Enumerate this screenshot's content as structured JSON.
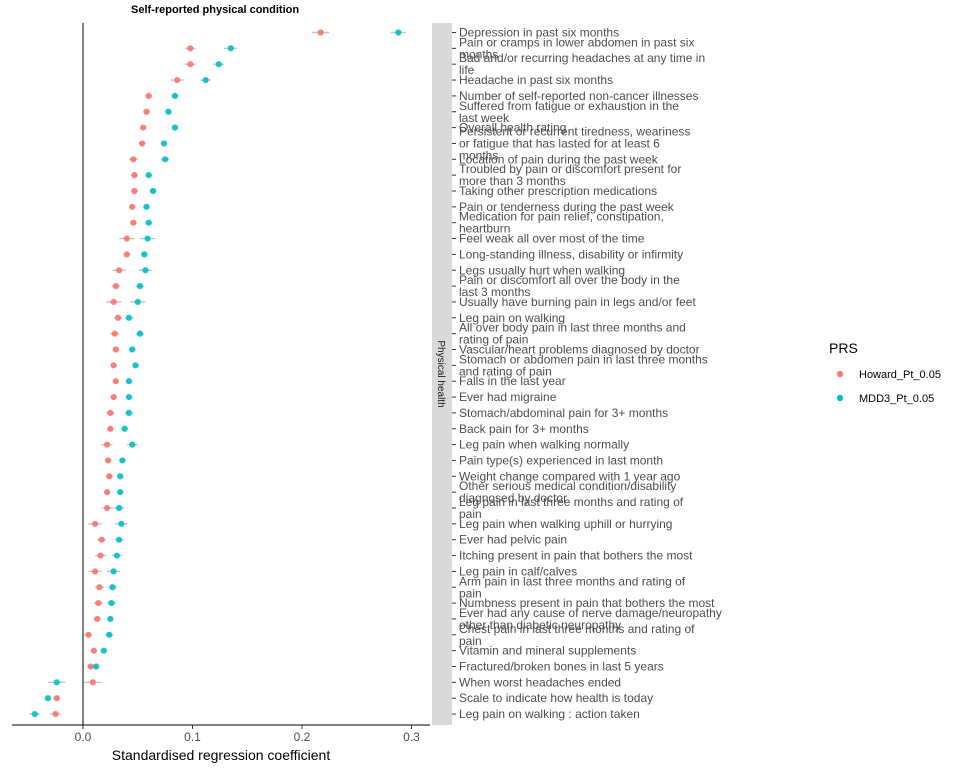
{
  "chart_data": {
    "type": "scatter",
    "title": "Self-reported physical condition",
    "xlabel": "Standardised regression coefficient",
    "ylabel": "",
    "xlim": [
      -0.065,
      0.315
    ],
    "xticks": [
      0.0,
      0.1,
      0.2,
      0.3
    ],
    "xtick_labels": [
      "0.0",
      "0.1",
      "0.2",
      "0.3"
    ],
    "facet_label": "Physical health",
    "legend": {
      "title": "PRS",
      "placement": "right"
    },
    "grid": false,
    "categories": [
      "Depression in past six months",
      "Pain or cramps in lower abdomen in past six months",
      "Bad and/or recurring headaches at any time in life",
      "Headache in past six months",
      "Number of self-reported non-cancer illnesses",
      "Suffered from fatigue or exhaustion in the last week",
      "Overall health rating",
      "Persistent or recurrent tiredness, weariness or fatigue that has lasted for at least 6 months",
      "Location of pain during the past week",
      "Troubled by pain or discomfort present for more than 3 months",
      "Taking other prescription medications",
      "Pain or tenderness during the past week",
      "Medication for pain relief, constipation, heartburn",
      "Feel weak all over most of the time",
      "Long-standing illness, disability or infirmity",
      "Legs usually hurt when walking",
      "Pain or discomfort all over the body in the last 3 months",
      "Usually have burning pain in legs and/or feet",
      "Leg pain on walking",
      "All over body pain in last three months and rating of pain",
      "Vascular/heart problems diagnosed by doctor",
      "Stomach or abdomen pain in last three months and rating of pain",
      "Falls in the last year",
      "Ever had migraine",
      "Stomach/abdominal pain for 3+ months",
      "Back pain for 3+ months",
      "Leg pain when walking normally",
      "Pain type(s) experienced in last month",
      "Weight change compared with 1 year ago",
      "Other serious medical condition/disability diagnosed by doctor",
      "Leg pain in last three months and rating of pain",
      "Leg pain when walking uphill or hurrying",
      "Ever had pelvic pain",
      "Itching present in pain that bothers the most",
      "Leg pain in calf/calves",
      "Arm pain in last three months and rating of pain",
      "Numbness present in pain that bothers the most",
      "Ever had any cause of nerve damage/neuropathy other than diabetic neuropathy",
      "Chest pain in last three months and rating of pain",
      "Vitamin and mineral supplements",
      "Fractured/broken bones in last 5 years",
      "When worst headaches ended",
      "Scale to indicate how health is today",
      "Leg pain on walking : action taken"
    ],
    "series": [
      {
        "name": "Howard_Pt_0.05",
        "color": "#F8766D",
        "values": [
          0.217,
          0.098,
          0.098,
          0.086,
          0.06,
          0.058,
          0.055,
          0.054,
          0.046,
          0.047,
          0.047,
          0.045,
          0.046,
          0.04,
          0.04,
          0.033,
          0.03,
          0.028,
          0.032,
          0.029,
          0.03,
          0.028,
          0.03,
          0.028,
          0.025,
          0.025,
          0.022,
          0.023,
          0.024,
          0.022,
          0.022,
          0.011,
          0.017,
          0.016,
          0.011,
          0.015,
          0.014,
          0.013,
          0.005,
          0.01,
          0.007,
          0.009,
          -0.024,
          -0.025
        ],
        "err": [
          0.008,
          0.005,
          0.005,
          0.006,
          0.003,
          0.003,
          0.003,
          0.003,
          0.004,
          0.003,
          0.003,
          0.003,
          0.003,
          0.007,
          0.003,
          0.006,
          0.004,
          0.007,
          0.004,
          0.004,
          0.003,
          0.003,
          0.003,
          0.003,
          0.004,
          0.003,
          0.005,
          0.003,
          0.003,
          0.003,
          0.005,
          0.006,
          0.004,
          0.005,
          0.006,
          0.004,
          0.004,
          0.003,
          0.004,
          0.003,
          0.003,
          0.008,
          0.003,
          0.005
        ]
      },
      {
        "name": "MDD3_Pt_0.05",
        "color": "#00BFC4",
        "values": [
          0.288,
          0.135,
          0.124,
          0.112,
          0.084,
          0.078,
          0.084,
          0.074,
          0.075,
          0.06,
          0.064,
          0.058,
          0.06,
          0.059,
          0.056,
          0.057,
          0.052,
          0.05,
          0.042,
          0.052,
          0.045,
          0.048,
          0.042,
          0.042,
          0.042,
          0.038,
          0.045,
          0.036,
          0.034,
          0.034,
          0.033,
          0.035,
          0.033,
          0.031,
          0.028,
          0.027,
          0.026,
          0.025,
          0.024,
          0.019,
          0.012,
          -0.024,
          -0.032,
          -0.044
        ],
        "err": [
          0.007,
          0.006,
          0.005,
          0.005,
          0.003,
          0.003,
          0.003,
          0.003,
          0.004,
          0.003,
          0.003,
          0.003,
          0.003,
          0.007,
          0.003,
          0.006,
          0.004,
          0.007,
          0.004,
          0.004,
          0.003,
          0.003,
          0.003,
          0.003,
          0.004,
          0.003,
          0.005,
          0.003,
          0.003,
          0.003,
          0.005,
          0.006,
          0.004,
          0.005,
          0.006,
          0.004,
          0.004,
          0.003,
          0.004,
          0.003,
          0.003,
          0.008,
          0.003,
          0.005
        ]
      }
    ]
  }
}
